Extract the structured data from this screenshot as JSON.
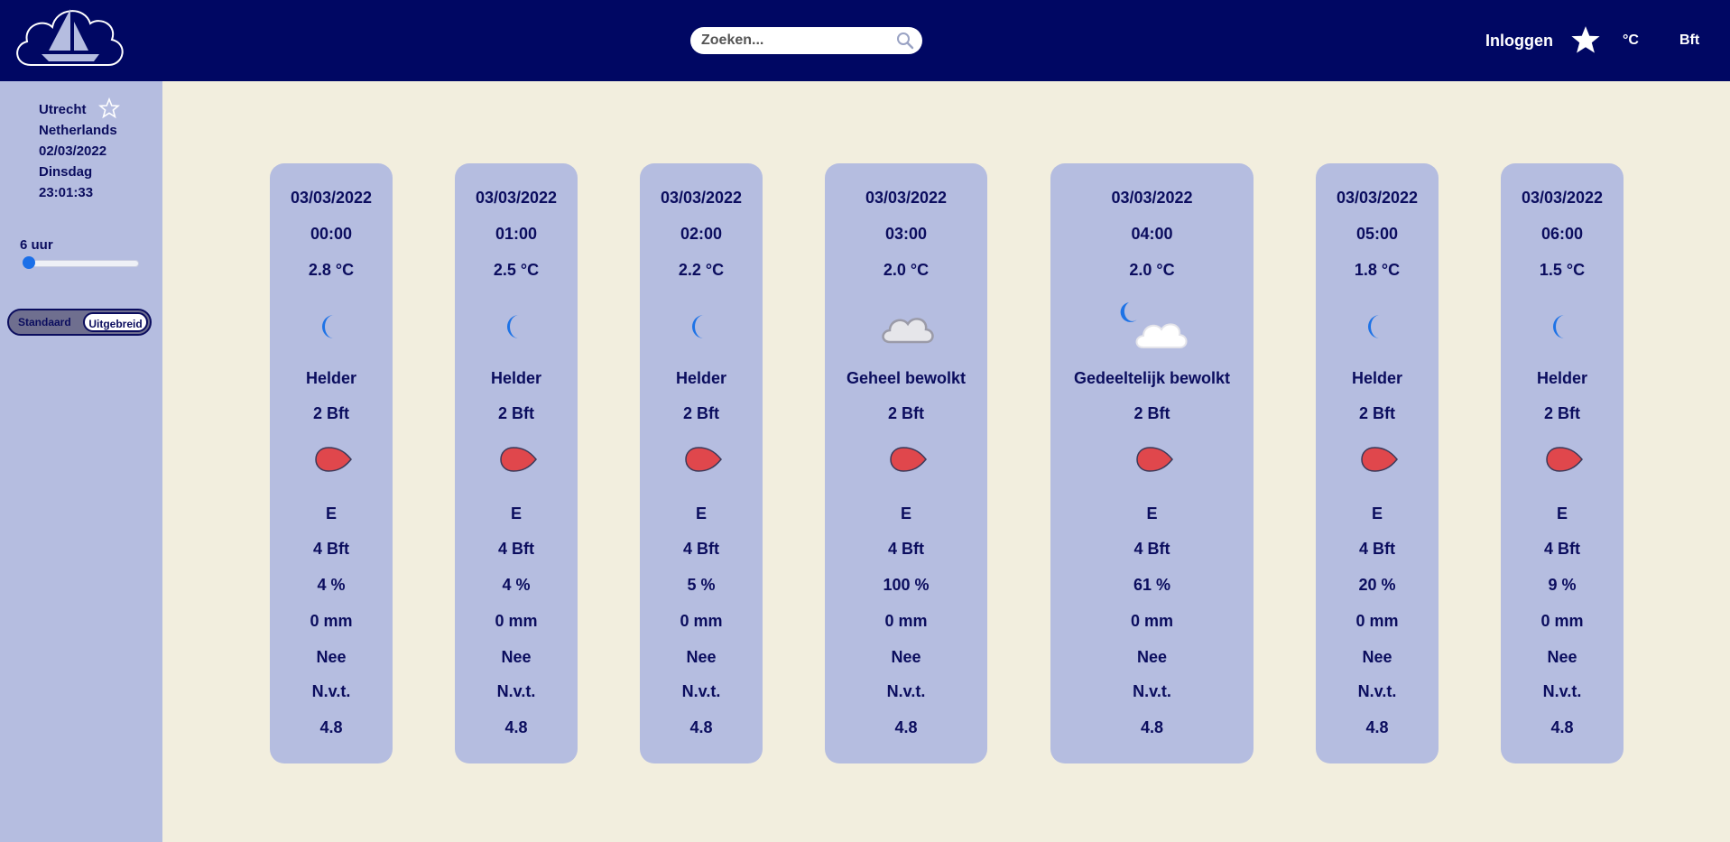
{
  "header": {
    "logo": "sailboat-cloud-logo",
    "search_placeholder": "Zoeken...",
    "login_label": "Inloggen",
    "unit_temp": "°C",
    "unit_wind": "Bft"
  },
  "sidebar": {
    "city": "Utrecht",
    "country": "Netherlands",
    "date": "02/03/2022",
    "weekday": "Dinsdag",
    "time": "23:01:33",
    "range_label": "6 uur",
    "range_level": 0,
    "toggle_standard": "Standaard",
    "toggle_extended": "Uitgebreid"
  },
  "colors": {
    "header_bg": "#000763",
    "sidebar_bg": "#b5bde0",
    "page_bg": "#f2eede",
    "text": "#0b0d5e",
    "drop": "#e0474c"
  },
  "forecast": [
    {
      "date": "03/03/2022",
      "time": "00:00",
      "temp": "2.8 °C",
      "icon": "moon-icon",
      "condition": "Helder",
      "wind": "2 Bft",
      "dir": "E",
      "gust": "4 Bft",
      "clouds": "4 %",
      "rain": "0 mm",
      "snow": "Nee",
      "extra": "N.v.t.",
      "value": "4.8"
    },
    {
      "date": "03/03/2022",
      "time": "01:00",
      "temp": "2.5 °C",
      "icon": "moon-icon",
      "condition": "Helder",
      "wind": "2 Bft",
      "dir": "E",
      "gust": "4 Bft",
      "clouds": "4 %",
      "rain": "0 mm",
      "snow": "Nee",
      "extra": "N.v.t.",
      "value": "4.8"
    },
    {
      "date": "03/03/2022",
      "time": "02:00",
      "temp": "2.2 °C",
      "icon": "moon-icon",
      "condition": "Helder",
      "wind": "2 Bft",
      "dir": "E",
      "gust": "4 Bft",
      "clouds": "5 %",
      "rain": "0 mm",
      "snow": "Nee",
      "extra": "N.v.t.",
      "value": "4.8"
    },
    {
      "date": "03/03/2022",
      "time": "03:00",
      "temp": "2.0 °C",
      "icon": "cloud-icon",
      "condition": "Geheel bewolkt",
      "wind": "2 Bft",
      "dir": "E",
      "gust": "4 Bft",
      "clouds": "100 %",
      "rain": "0 mm",
      "snow": "Nee",
      "extra": "N.v.t.",
      "value": "4.8"
    },
    {
      "date": "03/03/2022",
      "time": "04:00",
      "temp": "2.0 °C",
      "icon": "moon-cloud-icon",
      "condition": "Gedeeltelijk bewolkt",
      "wind": "2 Bft",
      "dir": "E",
      "gust": "4 Bft",
      "clouds": "61 %",
      "rain": "0 mm",
      "snow": "Nee",
      "extra": "N.v.t.",
      "value": "4.8"
    },
    {
      "date": "03/03/2022",
      "time": "05:00",
      "temp": "1.8 °C",
      "icon": "moon-icon",
      "condition": "Helder",
      "wind": "2 Bft",
      "dir": "E",
      "gust": "4 Bft",
      "clouds": "20 %",
      "rain": "0 mm",
      "snow": "Nee",
      "extra": "N.v.t.",
      "value": "4.8"
    },
    {
      "date": "03/03/2022",
      "time": "06:00",
      "temp": "1.5 °C",
      "icon": "moon-icon",
      "condition": "Helder",
      "wind": "2 Bft",
      "dir": "E",
      "gust": "4 Bft",
      "clouds": "9 %",
      "rain": "0 mm",
      "snow": "Nee",
      "extra": "N.v.t.",
      "value": "4.8"
    }
  ]
}
